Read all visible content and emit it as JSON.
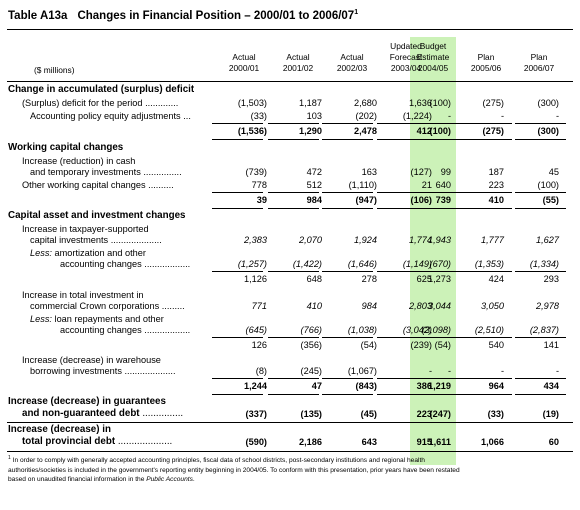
{
  "title": {
    "table_id": "Table A13a",
    "text": "Changes in Financial Position – 2000/01 to 2006/07",
    "footnote_ref": "1"
  },
  "units": "($ millions)",
  "columns": [
    {
      "line1": "",
      "line2": "Actual",
      "line3": "2000/01"
    },
    {
      "line1": "",
      "line2": "Actual",
      "line3": "2001/02"
    },
    {
      "line1": "",
      "line2": "Actual",
      "line3": "2002/03"
    },
    {
      "line1": "Updated",
      "line2": "Forecast",
      "line3": "2003/04"
    },
    {
      "line1": "Budget",
      "line2": "Estimate",
      "line3": "2004/05"
    },
    {
      "line1": "",
      "line2": "Plan",
      "line3": "2005/06"
    },
    {
      "line1": "",
      "line2": "Plan",
      "line3": "2006/07"
    }
  ],
  "sections": {
    "accumulated": "Change in accumulated (surplus) deficit",
    "working": "Working capital changes",
    "capital": "Capital asset and investment changes",
    "guarantees_1": "Increase (decrease) in guarantees",
    "guarantees_2": "and non-guaranteed debt",
    "total_1": "Increase (decrease) in",
    "total_2": "total provincial debt"
  },
  "labels": {
    "surplus": "(Surplus) deficit for the period",
    "policy": "Accounting policy equity adjustments",
    "cash_1": "Increase (reduction) in cash",
    "cash_2": "and temporary investments",
    "other_wc": "Other working capital changes",
    "taxpayer_1": "Increase in taxpayer-supported",
    "taxpayer_2": "capital investments",
    "amort_less": "Less:",
    "amort_1": "amortization and other",
    "amort_2": "accounting changes",
    "crown_1": "Increase in total investment in",
    "crown_2": "commercial Crown corporations",
    "loan_less": "Less:",
    "loan_1": "loan repayments and other",
    "loan_2": "accounting changes",
    "warehouse_1": "Increase (decrease) in warehouse",
    "warehouse_2": "borrowing investments"
  },
  "rows": {
    "surplus": [
      "(1,503)",
      "1,187",
      "2,680",
      "1,636",
      "(100)",
      "(275)",
      "(300)"
    ],
    "policy": [
      "(33)",
      "103",
      "(202)",
      "(1,224)",
      "-",
      "-",
      "-"
    ],
    "sub_accum": [
      "(1,536)",
      "1,290",
      "2,478",
      "412",
      "(100)",
      "(275)",
      "(300)"
    ],
    "cash": [
      "(739)",
      "472",
      "163",
      "(127)",
      "99",
      "187",
      "45"
    ],
    "other_wc": [
      "778",
      "512",
      "(1,110)",
      "21",
      "640",
      "223",
      "(100)"
    ],
    "sub_wc": [
      "39",
      "984",
      "(947)",
      "(106)",
      "739",
      "410",
      "(55)"
    ],
    "taxpayer": [
      "2,383",
      "2,070",
      "1,924",
      "1,774",
      "1,943",
      "1,777",
      "1,627"
    ],
    "amort": [
      "(1,257)",
      "(1,422)",
      "(1,646)",
      "(1,149)",
      "(670)",
      "(1,353)",
      "(1,334)"
    ],
    "sub_taxpayer": [
      "1,126",
      "648",
      "278",
      "625",
      "1,273",
      "424",
      "293"
    ],
    "crown": [
      "771",
      "410",
      "984",
      "2,803",
      "3,044",
      "3,050",
      "2,978"
    ],
    "loan": [
      "(645)",
      "(766)",
      "(1,038)",
      "(3,042)",
      "(3,098)",
      "(2,510)",
      "(2,837)"
    ],
    "sub_crown": [
      "126",
      "(356)",
      "(54)",
      "(239)",
      "(54)",
      "540",
      "141"
    ],
    "warehouse": [
      "(8)",
      "(245)",
      "(1,067)",
      "-",
      "-",
      "-",
      "-"
    ],
    "sub_capital": [
      "1,244",
      "47",
      "(843)",
      "386",
      "1,219",
      "964",
      "434"
    ],
    "guarantees": [
      "(337)",
      "(135)",
      "(45)",
      "223",
      "(247)",
      "(33)",
      "(19)"
    ],
    "total": [
      "(590)",
      "2,186",
      "643",
      "915",
      "1,611",
      "1,066",
      "60"
    ]
  },
  "footnote": {
    "marker": "1",
    "line1": "In order to comply with generally accepted accounting principles, fiscal data of school districts, post-secondary institutions and regional health",
    "line2": "authorities/societies is included in the government's reporting entity beginning in 2004/05.  To conform with this presentation, prior years have been restated",
    "line3_pre": "based on unaudited financial information in the",
    "line3_italic": "Public Accounts",
    "line3_post": "."
  }
}
